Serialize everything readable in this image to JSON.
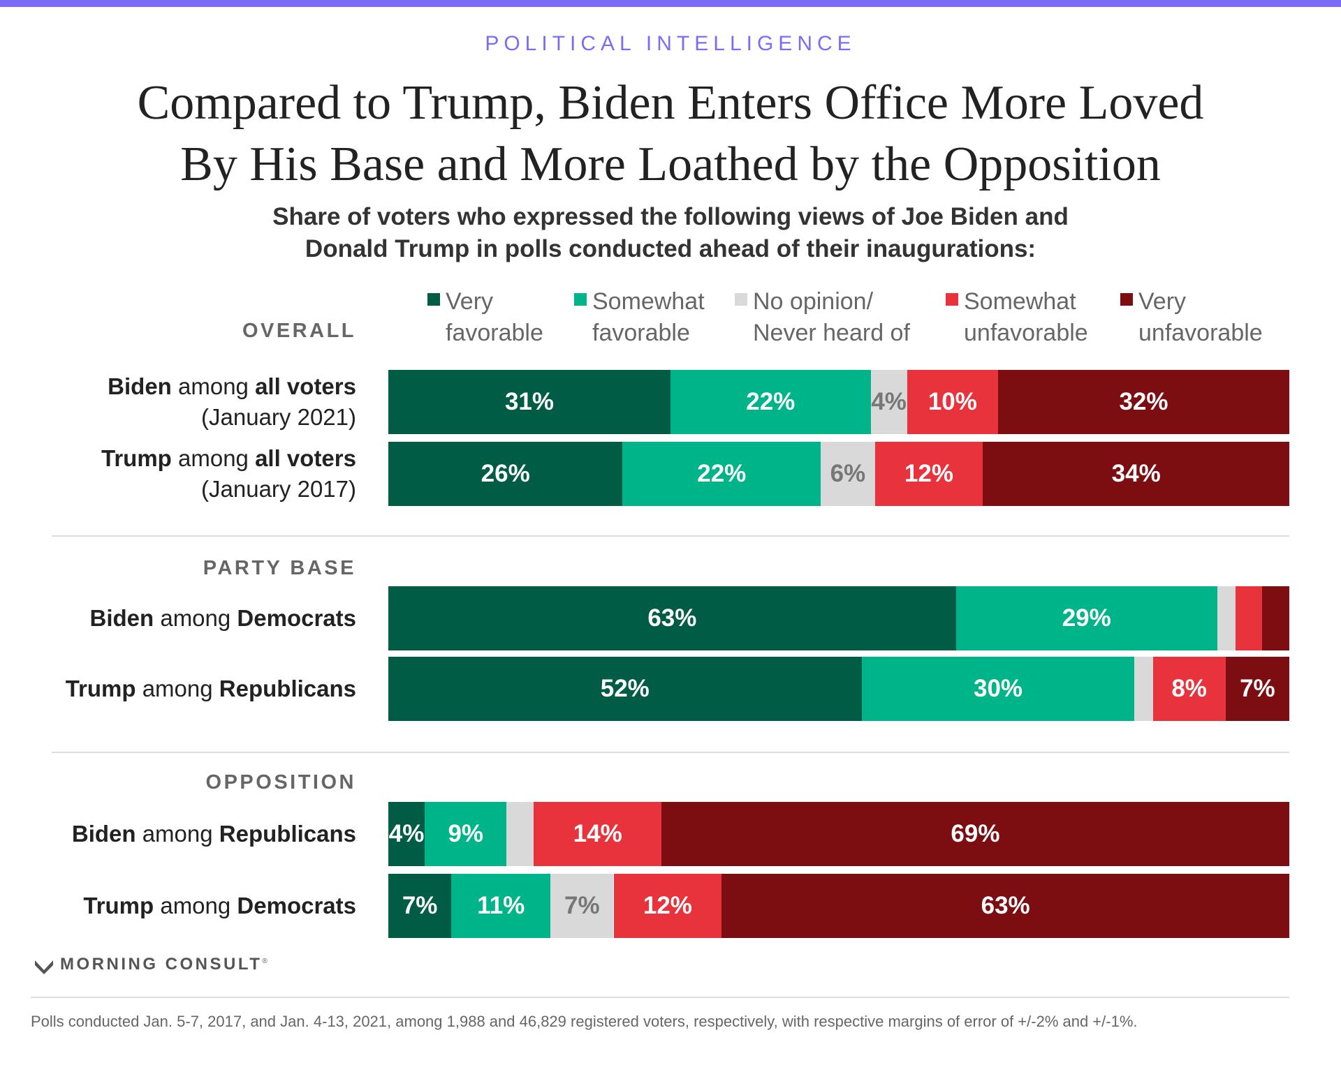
{
  "header": {
    "kicker": "POLITICAL INTELLIGENCE",
    "title_line1": "Compared to Trump, Biden Enters Office More Loved",
    "title_line2": "By His Base and More Loathed by the Opposition",
    "subtitle_line1": "Share of voters who expressed the following views of Joe Biden and",
    "subtitle_line2": "Donald Trump in polls conducted ahead of their inaugurations:"
  },
  "colors": {
    "accent": "#7b6cf6",
    "very_favorable": "#005c45",
    "somewhat_favorable": "#00b48a",
    "no_opinion": "#d9d9d9",
    "somewhat_unfavorable": "#e8323c",
    "very_unfavorable": "#7c0e12",
    "label_light": "#ffffff",
    "label_dark": "#777777"
  },
  "chart_data": {
    "type": "bar",
    "orientation": "horizontal",
    "stacked": true,
    "unit": "%",
    "legend": [
      {
        "line1": "Very",
        "line2": "favorable",
        "color": "#005c45"
      },
      {
        "line1": "Somewhat",
        "line2": "favorable",
        "color": "#00b48a"
      },
      {
        "line1": "No opinion/",
        "line2": "Never heard of",
        "color": "#d9d9d9"
      },
      {
        "line1": "Somewhat",
        "line2": "unfavorable",
        "color": "#e8323c"
      },
      {
        "line1": "Very",
        "line2": "unfavorable",
        "color": "#7c0e12"
      }
    ],
    "sections": [
      {
        "label": "OVERALL",
        "rows": [
          {
            "subject": "Biden",
            "mid": " among ",
            "group": "all voters",
            "line2": "(January 2021)",
            "values": [
              31,
              22,
              4,
              10,
              32
            ],
            "labels": [
              "31%",
              "22%",
              "4%",
              "10%",
              "32%"
            ]
          },
          {
            "subject": "Trump",
            "mid": " among ",
            "group": "all voters",
            "line2": "(January 2017)",
            "values": [
              26,
              22,
              6,
              12,
              34
            ],
            "labels": [
              "26%",
              "22%",
              "6%",
              "12%",
              "34%"
            ]
          }
        ]
      },
      {
        "label": "PARTY BASE",
        "rows": [
          {
            "subject": "Biden",
            "mid": " among ",
            "group": "Democrats",
            "line2": "",
            "values": [
              63,
              29,
              2,
              3,
              3
            ],
            "labels": [
              "63%",
              "29%",
              "",
              "",
              ""
            ]
          },
          {
            "subject": "Trump",
            "mid": " among ",
            "group": "Republicans",
            "line2": "",
            "values": [
              52,
              30,
              2,
              8,
              7
            ],
            "labels": [
              "52%",
              "30%",
              "",
              "8%",
              "7%"
            ]
          }
        ]
      },
      {
        "label": "OPPOSITION",
        "rows": [
          {
            "subject": "Biden",
            "mid": " among ",
            "group": "Republicans",
            "line2": "",
            "values": [
              4,
              9,
              3,
              14,
              69
            ],
            "labels": [
              "4%",
              "9%",
              "",
              "14%",
              "69%"
            ]
          },
          {
            "subject": "Trump",
            "mid": " among ",
            "group": "Democrats",
            "line2": "",
            "values": [
              7,
              11,
              7,
              12,
              63
            ],
            "labels": [
              "7%",
              "11%",
              "7%",
              "12%",
              "63%"
            ]
          }
        ]
      }
    ]
  },
  "footer": {
    "brand": "MORNING CONSULT",
    "brand_mark": "®",
    "logo_icon": "morning-consult-logo-icon",
    "footnote": "Polls conducted Jan. 5-7, 2017, and Jan. 4-13, 2021, among 1,988 and 46,829 registered voters, respectively, with respective margins of error of +/-2% and +/-1%."
  }
}
